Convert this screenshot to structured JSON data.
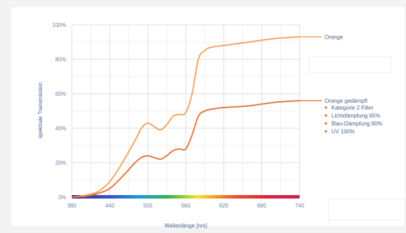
{
  "chart_data": {
    "type": "line",
    "xlabel": "Wellenlänge [nm]",
    "ylabel": "spektrale Transmission",
    "xlim": [
      380,
      740
    ],
    "ylim": [
      0,
      100
    ],
    "x_ticks": [
      "380",
      "440",
      "500",
      "560",
      "620",
      "680",
      "740"
    ],
    "y_ticks": [
      "0%",
      "20%",
      "40%",
      "60%",
      "80%",
      "100%"
    ],
    "grid": true,
    "legend_position": "right",
    "series": [
      {
        "name": "Orange",
        "color": "#f4a460",
        "x": [
          380,
          400,
          420,
          440,
          460,
          480,
          490,
          500,
          510,
          520,
          530,
          540,
          550,
          560,
          570,
          580,
          590,
          600,
          620,
          660,
          700,
          740
        ],
        "values": [
          0,
          1,
          3,
          9,
          20,
          33,
          40,
          43,
          41,
          39,
          42,
          47,
          48,
          49,
          60,
          80,
          85,
          87,
          88,
          90,
          92,
          93
        ]
      },
      {
        "name": "Orange gedämpft",
        "color": "#e4783e",
        "x": [
          380,
          400,
          420,
          440,
          460,
          480,
          490,
          500,
          510,
          520,
          530,
          540,
          550,
          560,
          570,
          580,
          590,
          600,
          620,
          660,
          700,
          740
        ],
        "values": [
          0,
          0.5,
          2,
          5,
          12,
          20,
          23,
          24,
          23,
          22,
          24,
          27,
          28,
          28,
          36,
          47,
          50,
          51,
          52,
          53,
          55,
          56
        ]
      }
    ],
    "legend_bullets": [
      "Kategorie 2 Filter",
      "Lichtdämpfung 65%",
      "Blau-Dämpfung 90%",
      "UV 100%"
    ],
    "bullet_color": "#e4783e"
  }
}
